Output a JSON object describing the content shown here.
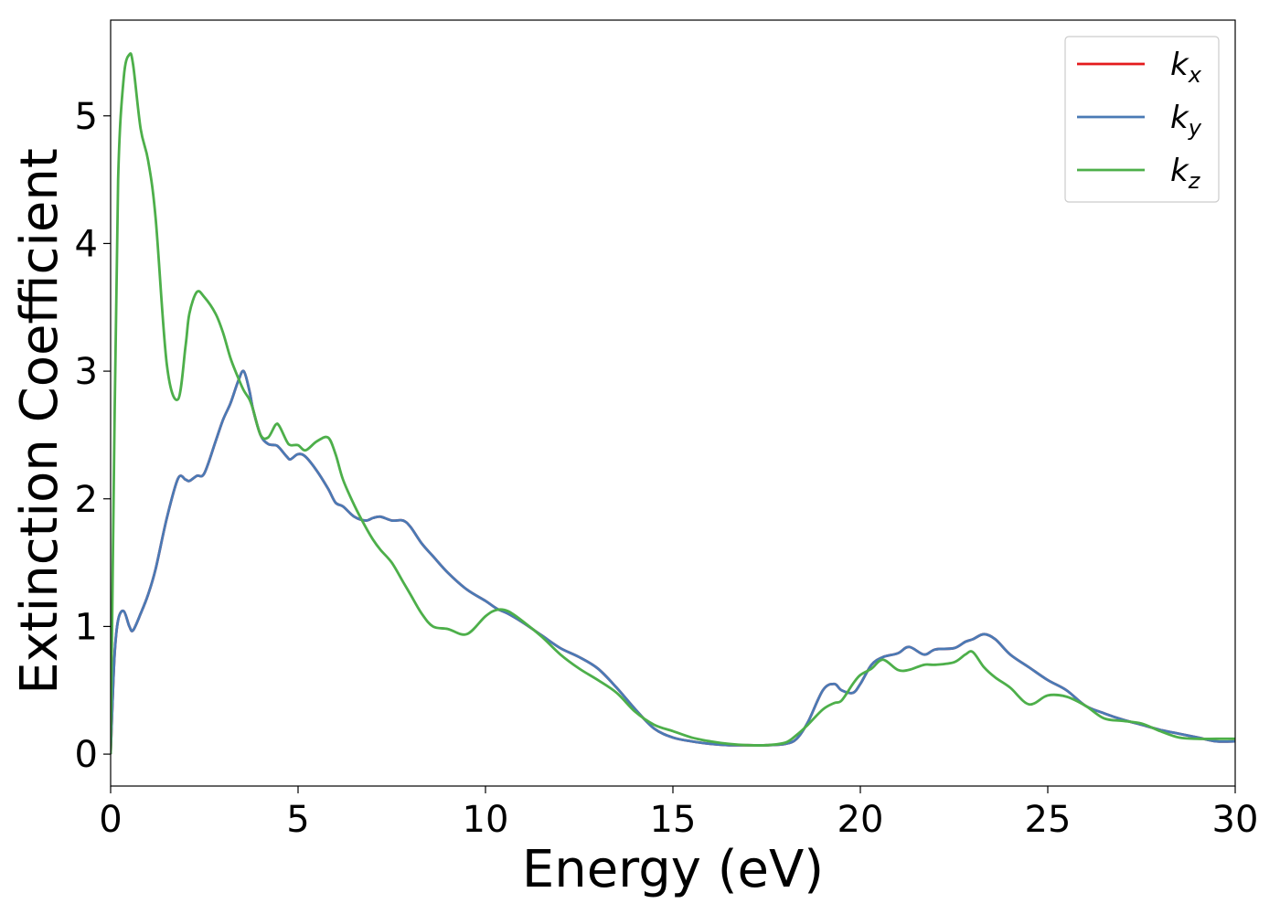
{
  "chart_data": {
    "type": "line",
    "xlabel": "Energy (eV)",
    "ylabel": "Extinction Coefficient",
    "xlim": [
      0,
      30
    ],
    "ylim": [
      -0.25,
      5.75
    ],
    "xticks": [
      0,
      5,
      10,
      15,
      20,
      25,
      30
    ],
    "yticks": [
      0,
      1,
      2,
      3,
      4,
      5
    ],
    "grid": false,
    "legend_position": "top-right",
    "x": [
      0,
      0.1,
      0.2,
      0.35,
      0.5,
      0.6,
      0.8,
      1.0,
      1.2,
      1.5,
      1.8,
      2.0,
      2.1,
      2.3,
      2.5,
      2.8,
      3.0,
      3.2,
      3.4,
      3.55,
      3.7,
      3.8,
      4.0,
      4.2,
      4.4,
      4.5,
      4.7,
      4.8,
      5.0,
      5.2,
      5.5,
      5.8,
      6.0,
      6.2,
      6.5,
      6.8,
      7.0,
      7.2,
      7.5,
      7.8,
      8.0,
      8.3,
      8.6,
      9.0,
      9.5,
      10.0,
      10.3,
      10.6,
      11.0,
      11.5,
      12.0,
      12.5,
      13.0,
      13.5,
      14.0,
      14.5,
      15.0,
      15.5,
      16.0,
      16.5,
      17.0,
      17.5,
      18.0,
      18.3,
      18.6,
      19.0,
      19.3,
      19.5,
      19.8,
      20.0,
      20.3,
      20.6,
      21.0,
      21.3,
      21.7,
      22.0,
      22.5,
      22.8,
      23.0,
      23.3,
      23.6,
      24.0,
      24.5,
      25.0,
      25.5,
      26.0,
      26.5,
      27.0,
      27.5,
      28.0,
      28.5,
      29.0,
      29.5,
      30.0
    ],
    "series": [
      {
        "name": "k_x",
        "color": "#e41a1c",
        "values": [
          0,
          0.75,
          1.05,
          1.12,
          1.0,
          0.97,
          1.1,
          1.25,
          1.45,
          1.85,
          2.16,
          2.15,
          2.14,
          2.18,
          2.2,
          2.45,
          2.62,
          2.75,
          2.92,
          3.0,
          2.85,
          2.7,
          2.5,
          2.43,
          2.42,
          2.4,
          2.33,
          2.31,
          2.35,
          2.33,
          2.22,
          2.08,
          1.97,
          1.94,
          1.86,
          1.83,
          1.85,
          1.86,
          1.83,
          1.83,
          1.78,
          1.65,
          1.55,
          1.42,
          1.29,
          1.2,
          1.14,
          1.1,
          1.03,
          0.93,
          0.83,
          0.76,
          0.67,
          0.52,
          0.35,
          0.2,
          0.13,
          0.1,
          0.08,
          0.07,
          0.07,
          0.07,
          0.08,
          0.12,
          0.25,
          0.5,
          0.55,
          0.5,
          0.48,
          0.55,
          0.7,
          0.76,
          0.79,
          0.84,
          0.78,
          0.82,
          0.83,
          0.88,
          0.9,
          0.94,
          0.9,
          0.78,
          0.68,
          0.58,
          0.5,
          0.38,
          0.32,
          0.27,
          0.23,
          0.19,
          0.16,
          0.13,
          0.1,
          0.1
        ]
      },
      {
        "name": "k_y",
        "color": "#4a7ab5",
        "values": [
          0,
          0.75,
          1.05,
          1.12,
          1.0,
          0.97,
          1.1,
          1.25,
          1.45,
          1.85,
          2.16,
          2.15,
          2.14,
          2.18,
          2.2,
          2.45,
          2.62,
          2.75,
          2.92,
          3.0,
          2.85,
          2.7,
          2.5,
          2.43,
          2.42,
          2.4,
          2.33,
          2.31,
          2.35,
          2.33,
          2.22,
          2.08,
          1.97,
          1.94,
          1.86,
          1.83,
          1.85,
          1.86,
          1.83,
          1.83,
          1.78,
          1.65,
          1.55,
          1.42,
          1.29,
          1.2,
          1.14,
          1.1,
          1.03,
          0.93,
          0.83,
          0.76,
          0.67,
          0.52,
          0.35,
          0.2,
          0.13,
          0.1,
          0.08,
          0.07,
          0.07,
          0.07,
          0.08,
          0.12,
          0.25,
          0.5,
          0.55,
          0.5,
          0.48,
          0.55,
          0.7,
          0.76,
          0.79,
          0.84,
          0.78,
          0.82,
          0.83,
          0.88,
          0.9,
          0.94,
          0.9,
          0.78,
          0.68,
          0.58,
          0.5,
          0.38,
          0.32,
          0.27,
          0.23,
          0.19,
          0.16,
          0.13,
          0.1,
          0.1
        ]
      },
      {
        "name": "k_z",
        "color": "#4daf4a",
        "values": [
          0,
          2.5,
          4.5,
          5.3,
          5.48,
          5.4,
          4.9,
          4.65,
          4.2,
          3.05,
          2.78,
          3.2,
          3.45,
          3.62,
          3.58,
          3.45,
          3.3,
          3.1,
          2.95,
          2.85,
          2.78,
          2.7,
          2.5,
          2.48,
          2.58,
          2.57,
          2.45,
          2.42,
          2.42,
          2.38,
          2.45,
          2.48,
          2.35,
          2.15,
          1.95,
          1.78,
          1.68,
          1.6,
          1.5,
          1.35,
          1.25,
          1.1,
          1.0,
          0.98,
          0.94,
          1.08,
          1.13,
          1.12,
          1.04,
          0.92,
          0.78,
          0.67,
          0.58,
          0.48,
          0.33,
          0.23,
          0.18,
          0.13,
          0.1,
          0.08,
          0.07,
          0.07,
          0.09,
          0.15,
          0.23,
          0.35,
          0.4,
          0.42,
          0.55,
          0.62,
          0.67,
          0.74,
          0.66,
          0.66,
          0.7,
          0.7,
          0.72,
          0.78,
          0.8,
          0.68,
          0.6,
          0.52,
          0.39,
          0.46,
          0.45,
          0.38,
          0.28,
          0.26,
          0.24,
          0.18,
          0.13,
          0.12,
          0.12,
          0.12
        ]
      }
    ]
  },
  "legend": {
    "items": [
      {
        "base": "k",
        "sub": "x"
      },
      {
        "base": "k",
        "sub": "y"
      },
      {
        "base": "k",
        "sub": "z"
      }
    ]
  }
}
